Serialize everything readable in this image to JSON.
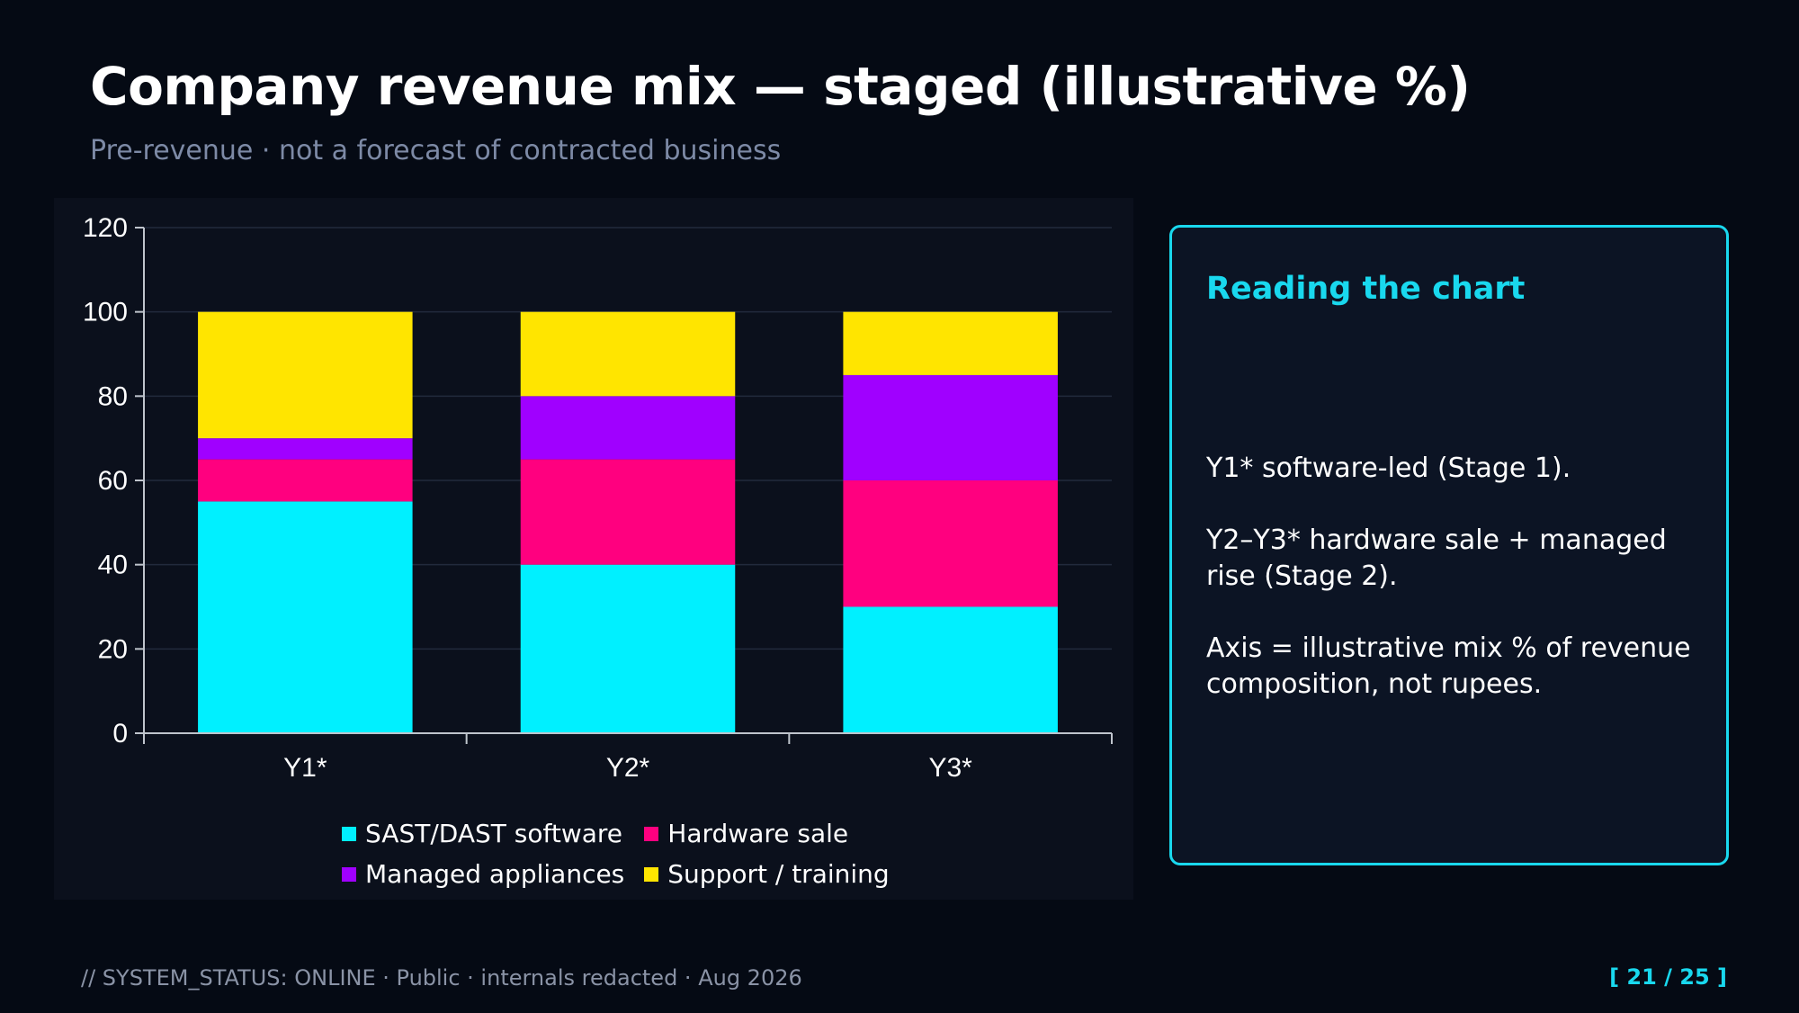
{
  "header": {
    "title": "Company revenue mix — staged (illustrative %)",
    "subtitle": "Pre-revenue · not a forecast of contracted business"
  },
  "note": {
    "title": "Reading the chart",
    "lines": [
      "Y1* software-led (Stage 1).",
      "Y2–Y3* hardware sale + managed rise (Stage 2).",
      "Axis = illustrative mix % of revenue composition, not rupees."
    ]
  },
  "footer": {
    "status": "// SYSTEM_STATUS: ONLINE  ·  Public · internals redacted · Aug 2026",
    "page": "[ 21 / 25 ]"
  },
  "colors": {
    "accent": "#19d8ee",
    "background": "#050a14"
  },
  "chart_data": {
    "type": "bar",
    "stacked": true,
    "categories": [
      "Y1*",
      "Y2*",
      "Y3*"
    ],
    "series": [
      {
        "name": "SAST/DAST software",
        "values": [
          55,
          40,
          30
        ],
        "color": "#00f0ff"
      },
      {
        "name": "Hardware sale",
        "values": [
          10,
          25,
          30
        ],
        "color": "#ff007f"
      },
      {
        "name": "Managed appliances",
        "values": [
          5,
          15,
          25
        ],
        "color": "#a000ff"
      },
      {
        "name": "Support / training",
        "values": [
          30,
          20,
          15
        ],
        "color": "#ffe500"
      }
    ],
    "ylim": [
      0,
      120
    ],
    "yticks": [
      0,
      20,
      40,
      60,
      80,
      100,
      120
    ],
    "grid": true,
    "legend_position": "bottom"
  }
}
